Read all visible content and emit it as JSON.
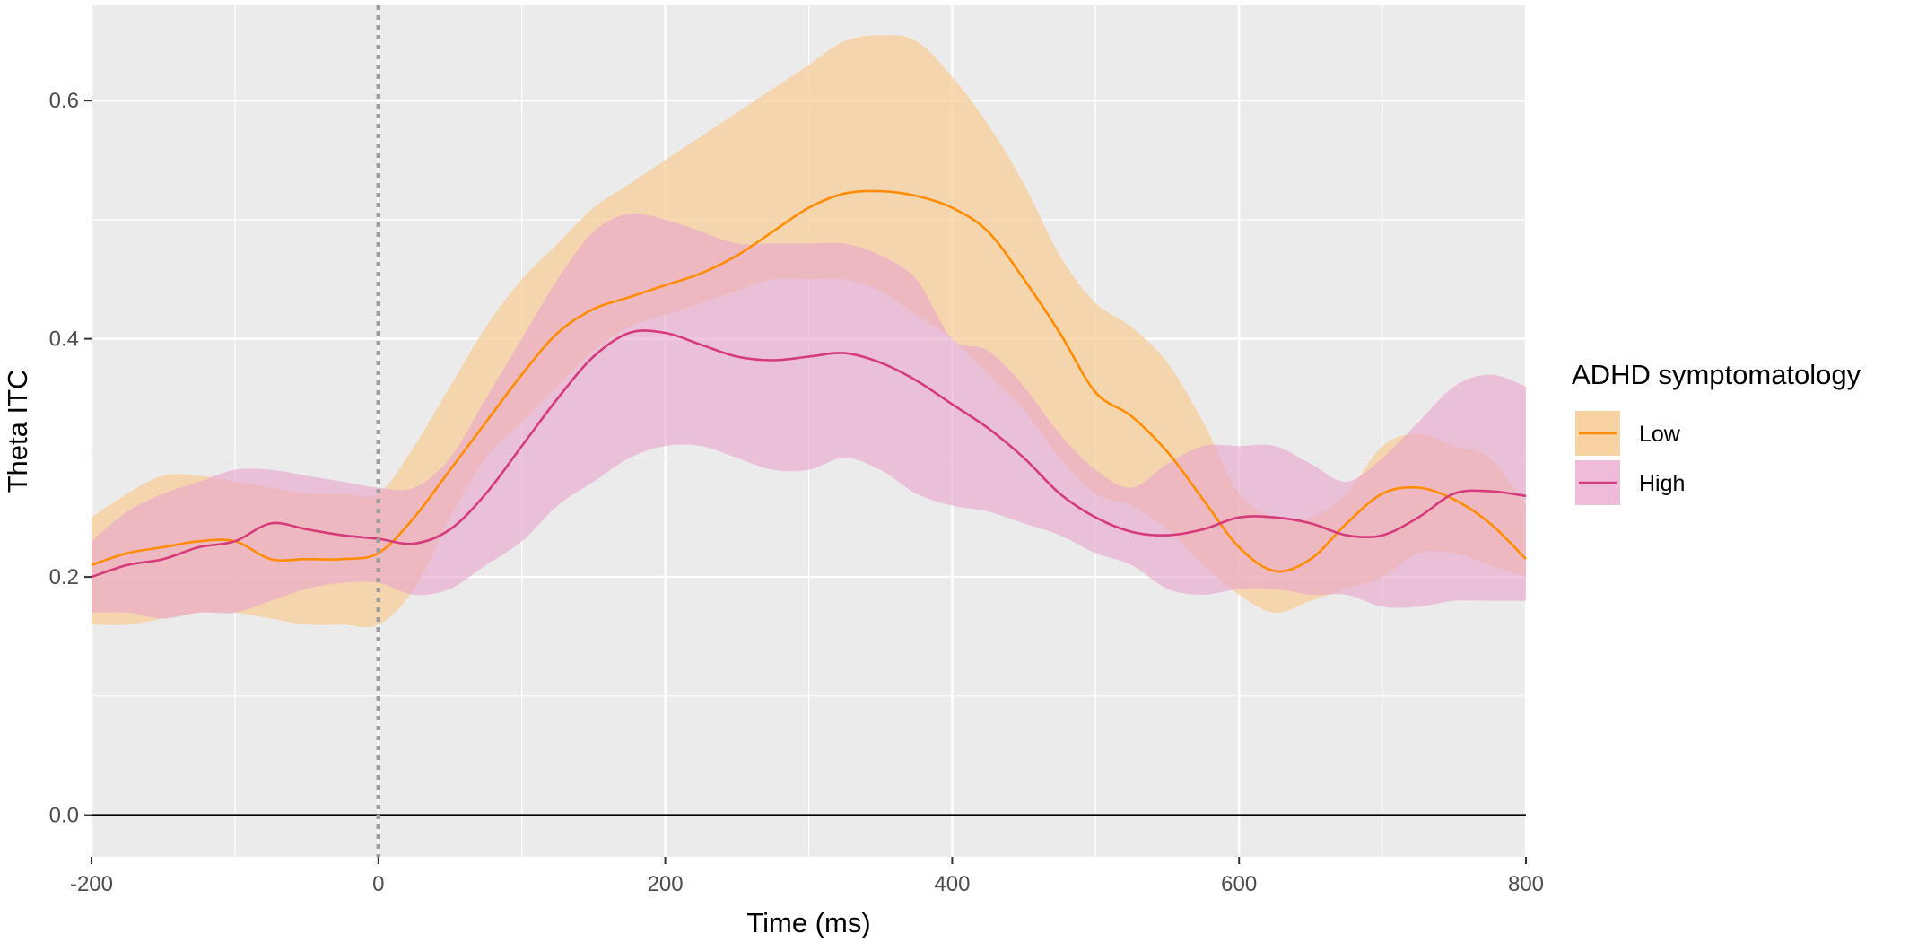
{
  "chart_data": {
    "type": "line",
    "title": "",
    "xlabel": "Time (ms)",
    "ylabel": "Theta ITC",
    "xlim": [
      -200,
      800
    ],
    "ylim": [
      -0.035,
      0.68
    ],
    "x_ticks": [
      -200,
      0,
      200,
      400,
      600,
      800
    ],
    "x_tick_labels": [
      "-200",
      "0",
      "200",
      "400",
      "600",
      "800"
    ],
    "y_ticks": [
      0.0,
      0.2,
      0.4,
      0.6
    ],
    "y_tick_labels": [
      "0.0",
      "0.2",
      "0.4",
      "0.6"
    ],
    "x_minor_gridlines": [
      -100,
      100,
      300,
      500,
      700
    ],
    "y_minor_gridlines": [
      0.1,
      0.3,
      0.5
    ],
    "grid": true,
    "background": "#EBEBEB",
    "vline": {
      "x": 0,
      "style": "dotted",
      "color": "#9E9E9E"
    },
    "hline": {
      "y": 0,
      "color": "#000000"
    },
    "legend": {
      "title": "ADHD symptomatology",
      "position": "right",
      "entries": [
        "Low",
        "High"
      ]
    },
    "x": [
      -200,
      -175,
      -150,
      -125,
      -100,
      -75,
      -50,
      -25,
      0,
      25,
      50,
      75,
      100,
      125,
      150,
      175,
      200,
      225,
      250,
      275,
      300,
      325,
      350,
      375,
      400,
      425,
      450,
      475,
      500,
      525,
      550,
      575,
      600,
      625,
      650,
      675,
      700,
      725,
      750,
      775,
      800
    ],
    "series": [
      {
        "name": "Low",
        "color": "#FF8C00",
        "fill": "#F6CC95",
        "fill_opacity": 0.72,
        "mean": [
          0.21,
          0.22,
          0.225,
          0.23,
          0.23,
          0.215,
          0.215,
          0.215,
          0.22,
          0.25,
          0.29,
          0.33,
          0.37,
          0.405,
          0.425,
          0.435,
          0.445,
          0.455,
          0.47,
          0.49,
          0.51,
          0.522,
          0.524,
          0.52,
          0.51,
          0.49,
          0.45,
          0.405,
          0.355,
          0.335,
          0.305,
          0.265,
          0.225,
          0.205,
          0.215,
          0.245,
          0.27,
          0.275,
          0.265,
          0.245,
          0.215
        ],
        "lower": [
          0.16,
          0.16,
          0.165,
          0.17,
          0.17,
          0.165,
          0.16,
          0.16,
          0.16,
          0.19,
          0.25,
          0.3,
          0.33,
          0.36,
          0.39,
          0.41,
          0.42,
          0.43,
          0.44,
          0.45,
          0.45,
          0.45,
          0.44,
          0.42,
          0.4,
          0.37,
          0.34,
          0.3,
          0.27,
          0.26,
          0.24,
          0.21,
          0.185,
          0.17,
          0.18,
          0.19,
          0.2,
          0.22,
          0.22,
          0.21,
          0.2
        ],
        "upper": [
          0.25,
          0.27,
          0.285,
          0.285,
          0.28,
          0.275,
          0.27,
          0.27,
          0.27,
          0.31,
          0.36,
          0.41,
          0.45,
          0.48,
          0.51,
          0.53,
          0.55,
          0.57,
          0.59,
          0.61,
          0.63,
          0.65,
          0.655,
          0.65,
          0.62,
          0.58,
          0.53,
          0.47,
          0.43,
          0.41,
          0.38,
          0.33,
          0.27,
          0.25,
          0.25,
          0.27,
          0.31,
          0.32,
          0.31,
          0.3,
          0.26
        ]
      },
      {
        "name": "High",
        "color": "#D63A7B",
        "fill": "#E9A6CC",
        "fill_opacity": 0.62,
        "mean": [
          0.2,
          0.21,
          0.215,
          0.225,
          0.23,
          0.245,
          0.24,
          0.235,
          0.232,
          0.228,
          0.24,
          0.27,
          0.31,
          0.35,
          0.385,
          0.405,
          0.405,
          0.395,
          0.385,
          0.382,
          0.385,
          0.388,
          0.38,
          0.365,
          0.345,
          0.325,
          0.3,
          0.27,
          0.25,
          0.238,
          0.235,
          0.24,
          0.25,
          0.25,
          0.245,
          0.235,
          0.235,
          0.25,
          0.27,
          0.272,
          0.268
        ],
        "lower": [
          0.17,
          0.17,
          0.165,
          0.17,
          0.17,
          0.18,
          0.19,
          0.195,
          0.195,
          0.185,
          0.19,
          0.21,
          0.23,
          0.26,
          0.28,
          0.3,
          0.31,
          0.31,
          0.3,
          0.29,
          0.29,
          0.3,
          0.29,
          0.27,
          0.26,
          0.255,
          0.245,
          0.235,
          0.22,
          0.21,
          0.19,
          0.185,
          0.19,
          0.19,
          0.185,
          0.185,
          0.175,
          0.175,
          0.18,
          0.18,
          0.18
        ],
        "upper": [
          0.23,
          0.255,
          0.27,
          0.28,
          0.29,
          0.29,
          0.285,
          0.28,
          0.275,
          0.275,
          0.3,
          0.35,
          0.4,
          0.45,
          0.49,
          0.505,
          0.5,
          0.49,
          0.48,
          0.48,
          0.48,
          0.48,
          0.47,
          0.45,
          0.4,
          0.39,
          0.36,
          0.32,
          0.29,
          0.275,
          0.295,
          0.31,
          0.31,
          0.31,
          0.295,
          0.28,
          0.3,
          0.33,
          0.36,
          0.37,
          0.36
        ]
      }
    ]
  }
}
